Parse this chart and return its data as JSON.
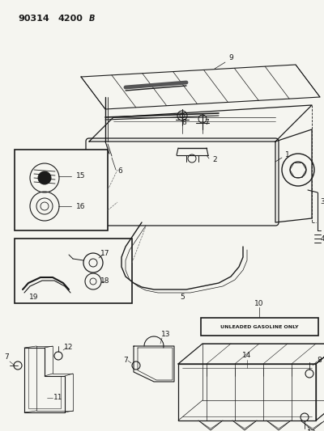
{
  "bg_color": "#f5f5f0",
  "line_color": "#1a1a1a",
  "fig_width": 4.0,
  "fig_height": 5.33,
  "dpi": 100,
  "header1": "90314",
  "header2": "4200",
  "header3": "B",
  "unleaded_text": "UNLEADED GASOLINE ONLY"
}
